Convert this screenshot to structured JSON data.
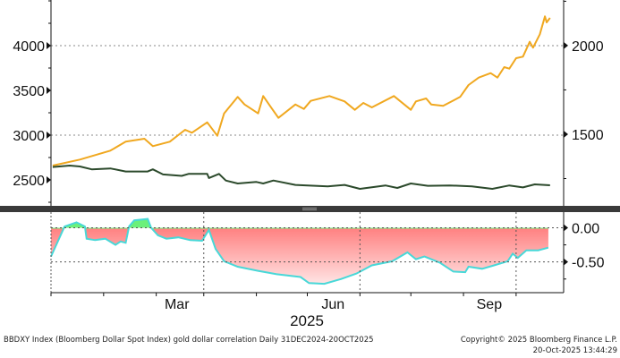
{
  "chart_data": [
    {
      "type": "line",
      "panel": "top",
      "x_unit": "days since 2024-12-01",
      "xlim": [
        0,
        302
      ],
      "y_left": {
        "ylim": [
          2210,
          4510
        ],
        "ticks": [
          4000,
          3500,
          3000,
          2500
        ],
        "tick_labels": [
          "4000",
          "3500",
          "3000",
          "2500"
        ]
      },
      "y_right": {
        "ylim": [
          1096,
          2257
        ],
        "ticks": [
          2000,
          1500
        ],
        "tick_labels": [
          "2000",
          "1500"
        ]
      },
      "grid": "dotted at 4000 / 3000",
      "series": [
        {
          "name": "Gold",
          "axis": "left",
          "color": "#f0a820",
          "x": [
            1,
            17,
            35,
            44,
            55,
            60,
            70,
            79,
            83,
            92,
            98,
            102,
            110,
            114,
            122,
            125,
            129,
            134,
            144,
            149,
            153,
            164,
            173,
            179,
            184,
            189,
            202,
            212,
            215,
            221,
            224,
            231,
            241,
            246,
            252,
            259,
            263,
            267,
            270,
            274,
            278,
            282,
            284,
            288,
            291,
            292,
            294
          ],
          "values": [
            2660,
            2727,
            2827,
            2927,
            2960,
            2877,
            2927,
            3060,
            3027,
            3143,
            2993,
            3243,
            3427,
            3343,
            3243,
            3437,
            3327,
            3193,
            3343,
            3293,
            3383,
            3437,
            3377,
            3283,
            3360,
            3310,
            3437,
            3283,
            3377,
            3410,
            3343,
            3327,
            3427,
            3560,
            3643,
            3693,
            3643,
            3760,
            3743,
            3860,
            3877,
            4043,
            3977,
            4127,
            4327,
            4260,
            4310
          ]
        },
        {
          "name": "BBDXY",
          "axis": "right",
          "color": "#2c4a2c",
          "x": [
            1,
            11,
            17,
            24,
            35,
            44,
            57,
            60,
            66,
            77,
            81,
            92,
            93,
            99,
            103,
            110,
            121,
            125,
            131,
            144,
            163,
            173,
            182,
            197,
            204,
            212,
            222,
            235,
            248,
            260,
            270,
            278,
            285,
            294
          ],
          "values": [
            1315,
            1323,
            1318,
            1302,
            1307,
            1290,
            1290,
            1302,
            1273,
            1265,
            1276,
            1276,
            1253,
            1276,
            1239,
            1222,
            1231,
            1222,
            1239,
            1214,
            1206,
            1214,
            1192,
            1211,
            1197,
            1222,
            1209,
            1211,
            1206,
            1192,
            1211,
            1200,
            1217,
            1212
          ]
        }
      ]
    },
    {
      "type": "area",
      "panel": "bottom",
      "title": "gold dollar correlation",
      "x_unit": "days since 2024-12-01",
      "xlim": [
        0,
        302
      ],
      "ylim": [
        -0.95,
        0.23
      ],
      "y_ticks": [
        0.0,
        -0.5
      ],
      "y_tick_labels": [
        "0.00",
        "-0.50"
      ],
      "positive_color": "#6cf07a",
      "negative_color": "#ff7a7a",
      "line_color": "#48d8d8",
      "series": [
        {
          "name": "Correlation",
          "x": [
            0,
            4,
            8,
            15,
            20,
            21,
            26,
            32,
            38,
            41,
            44,
            46,
            49,
            57,
            59,
            63,
            68,
            75,
            82,
            89,
            93,
            97,
            102,
            110,
            122,
            133,
            147,
            152,
            161,
            171,
            180,
            189,
            201,
            210,
            215,
            220,
            229,
            237,
            244,
            246,
            254,
            261,
            269,
            272,
            275,
            280,
            287,
            293
          ],
          "values": [
            -0.42,
            -0.2,
            0.02,
            0.08,
            0.02,
            -0.16,
            -0.18,
            -0.16,
            -0.25,
            -0.2,
            -0.22,
            0.02,
            0.11,
            0.13,
            0.0,
            -0.11,
            -0.16,
            -0.14,
            -0.18,
            -0.19,
            -0.03,
            -0.31,
            -0.49,
            -0.57,
            -0.63,
            -0.68,
            -0.72,
            -0.81,
            -0.82,
            -0.75,
            -0.67,
            -0.55,
            -0.49,
            -0.36,
            -0.46,
            -0.42,
            -0.51,
            -0.64,
            -0.65,
            -0.57,
            -0.6,
            -0.55,
            -0.49,
            -0.38,
            -0.44,
            -0.33,
            -0.33,
            -0.29
          ]
        }
      ]
    }
  ],
  "x_axis": {
    "month_ticks": [
      0,
      31,
      62,
      90,
      121,
      151,
      182,
      212,
      243,
      274
    ],
    "labels": [
      {
        "text": "Mar",
        "day": 90
      },
      {
        "text": "Jun",
        "day": 182
      },
      {
        "text": "Sep",
        "day": 274
      }
    ],
    "year_label": "2025"
  },
  "footer": {
    "description": "BBDXY Index (Bloomberg Dollar Spot Index) gold dollar correlation Daily 31DEC2024-20OCT2025",
    "copyright": "Copyright© 2025 Bloomberg Finance L.P.",
    "timestamp": "20-Oct-2025 13:44:29"
  }
}
